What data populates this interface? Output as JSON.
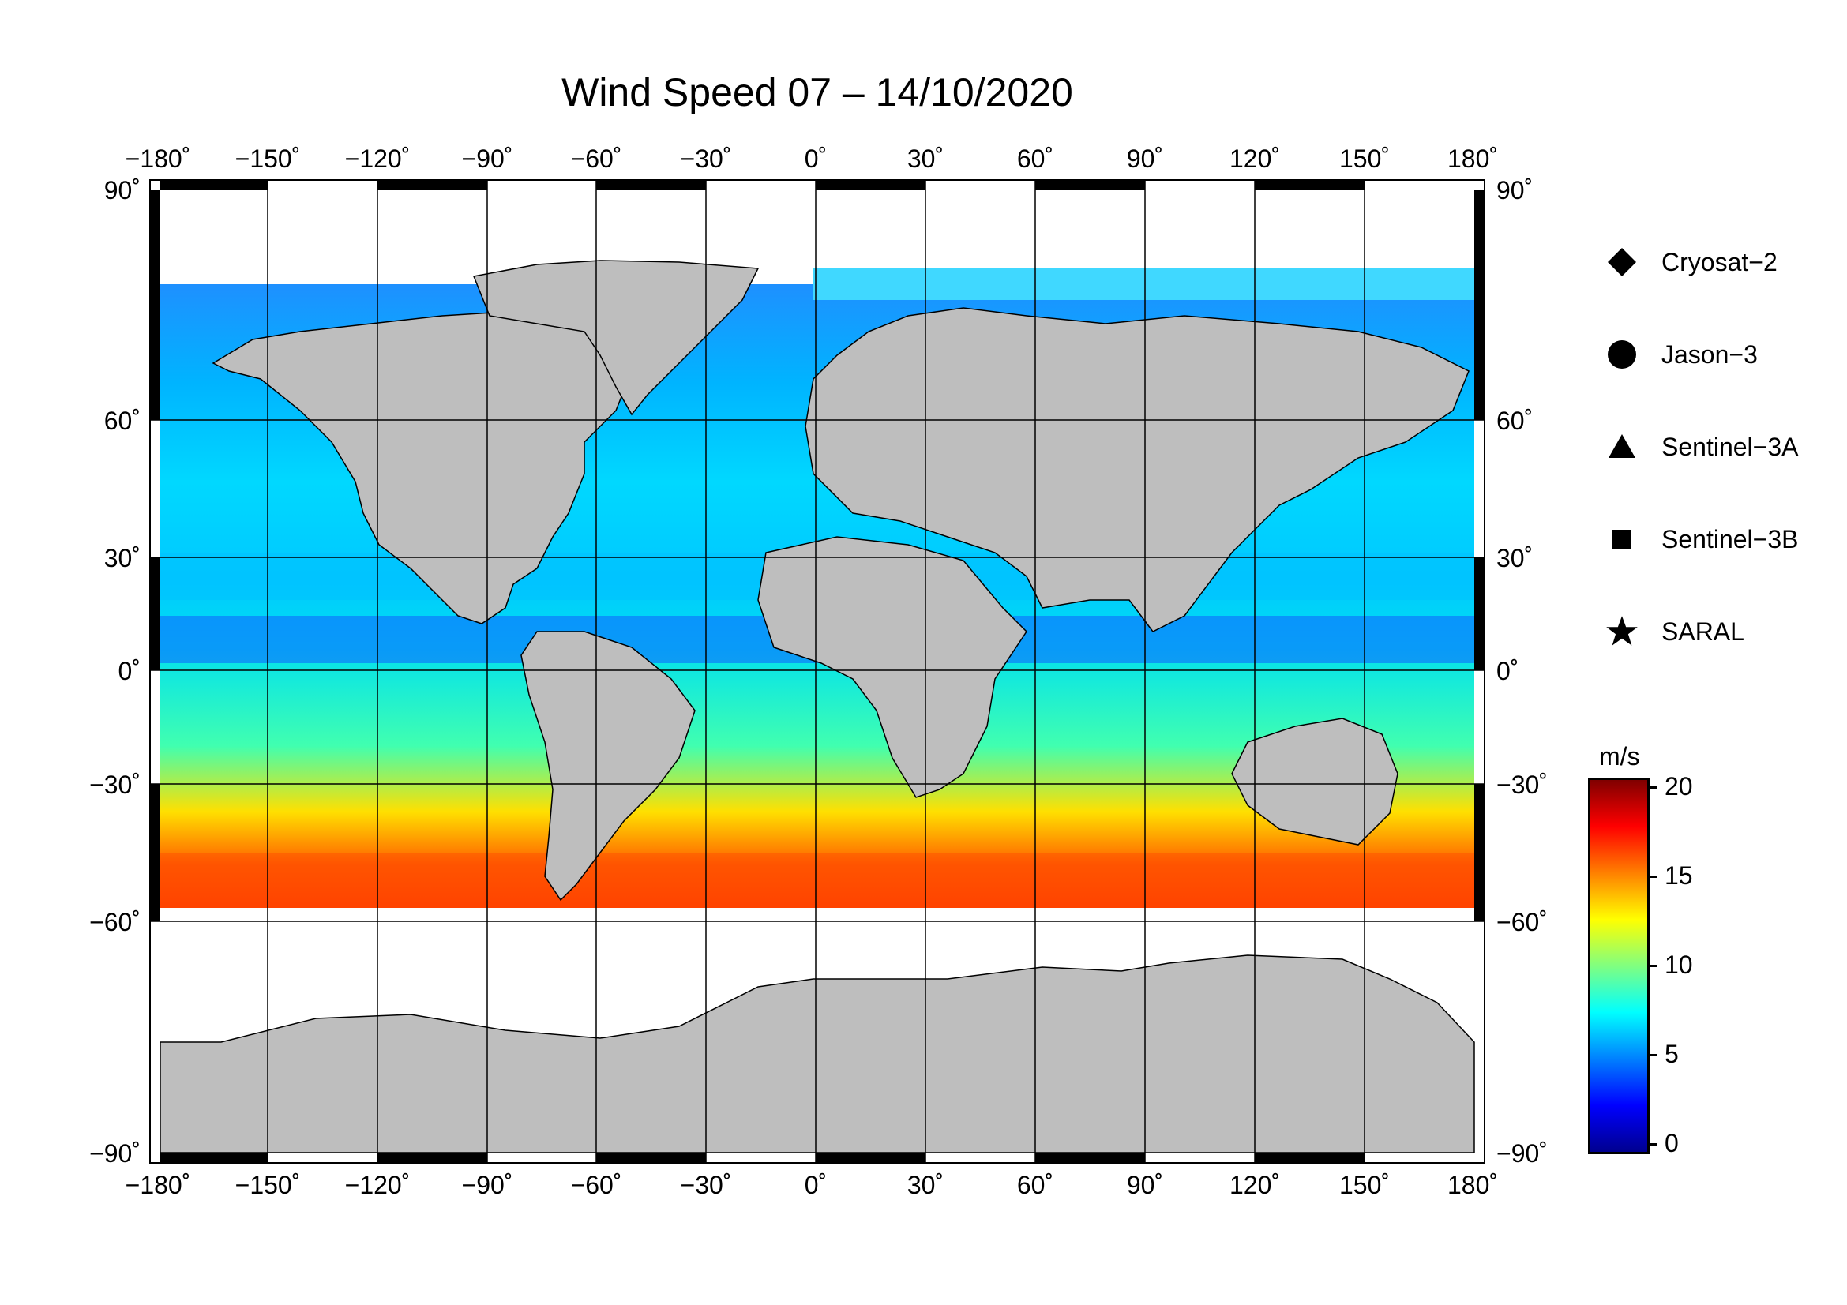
{
  "title": "Wind Speed 07 – 14/10/2020",
  "map": {
    "lon_ticks": [
      "−180˚",
      "−150˚",
      "−120˚",
      "−90˚",
      "−60˚",
      "−30˚",
      "0˚",
      "30˚",
      "60˚",
      "90˚",
      "120˚",
      "150˚",
      "180˚"
    ],
    "lat_ticks": [
      "90˚",
      "60˚",
      "30˚",
      "0˚",
      "−30˚",
      "−60˚",
      "−90˚"
    ],
    "land_color": "#bebebe",
    "ice_color": "#ffffff"
  },
  "legend": [
    {
      "symbol": "diamond-icon",
      "label": "Cryosat−2"
    },
    {
      "symbol": "circle-icon",
      "label": "Jason−3"
    },
    {
      "symbol": "triangle-icon",
      "label": "Sentinel−3A"
    },
    {
      "symbol": "square-icon",
      "label": "Sentinel−3B"
    },
    {
      "symbol": "star-icon",
      "label": "SARAL"
    }
  ],
  "colorbar": {
    "unit": "m/s",
    "ticks": [
      "20",
      "15",
      "10",
      "5",
      "0"
    ],
    "range": [
      0,
      20
    ],
    "colors": [
      "#00008f",
      "#0000ff",
      "#0080ff",
      "#00ffff",
      "#80ff80",
      "#ffff00",
      "#ff8000",
      "#ff0000",
      "#800000"
    ]
  }
}
